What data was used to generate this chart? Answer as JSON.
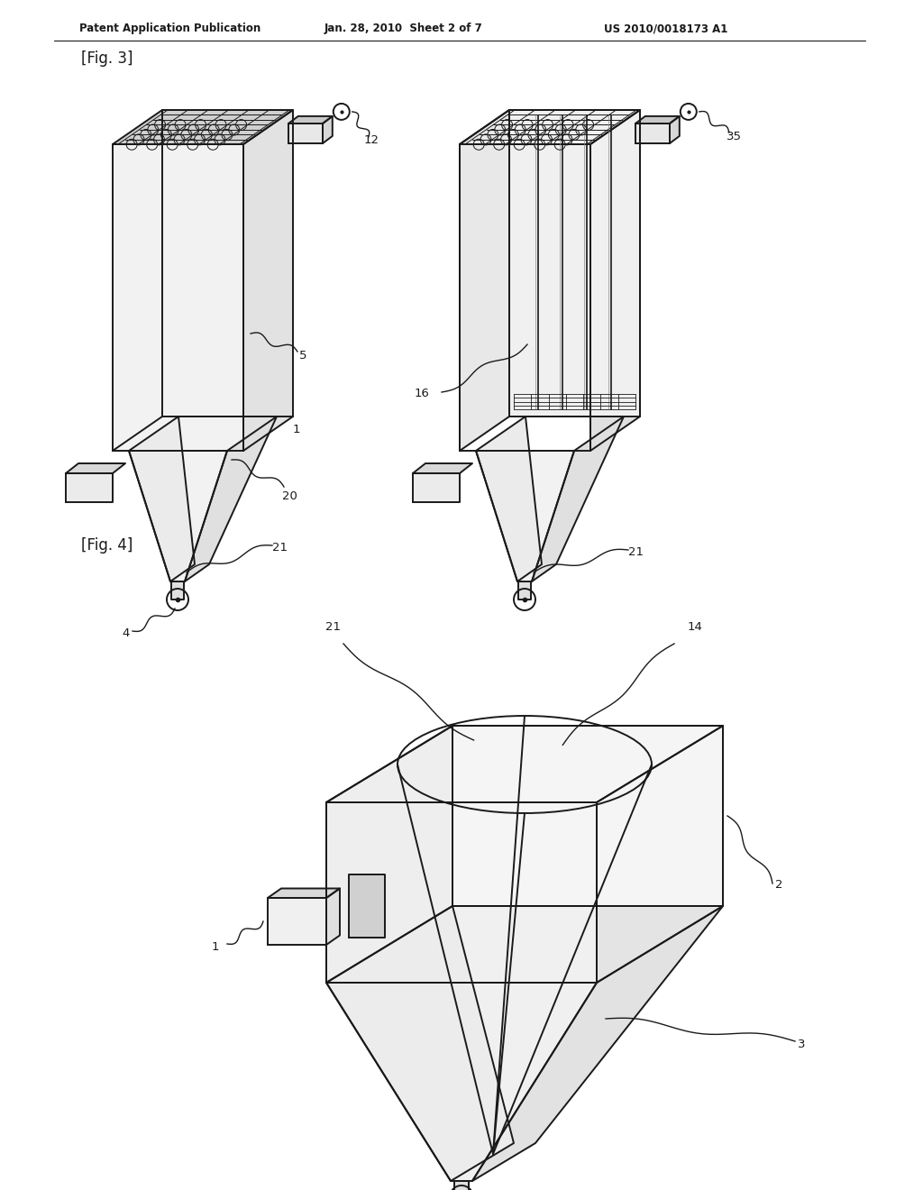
{
  "title_line1": "Patent Application Publication",
  "title_line2": "Jan. 28, 2010  Sheet 2 of 7",
  "title_line3": "US 2010/0018173 A1",
  "fig3_label": "[Fig. 3]",
  "fig4_label": "[Fig. 4]",
  "bg_color": "#ffffff",
  "line_color": "#1a1a1a",
  "lw": 1.4,
  "tlw": 0.7
}
